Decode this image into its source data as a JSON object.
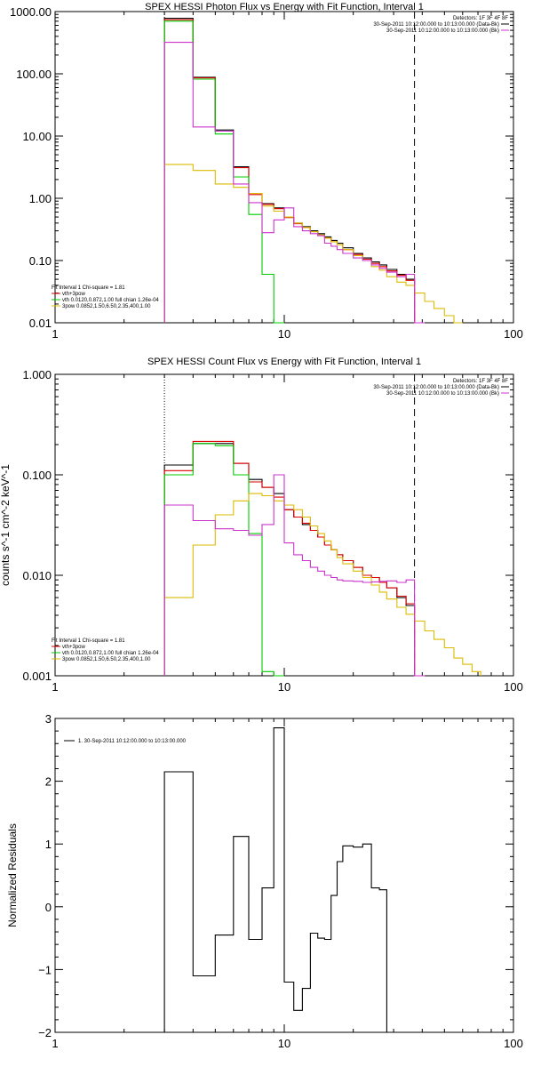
{
  "chart_data": [
    {
      "type": "line",
      "title": "SPEX HESSI Photon Flux vs Energy with Fit Function, Interval 1",
      "xscale": "log",
      "yscale": "log",
      "xlim": [
        1,
        100
      ],
      "ylim": [
        0.01,
        1000
      ],
      "xticks": [
        {
          "v": 1,
          "label": "1"
        },
        {
          "v": 10,
          "label": "10"
        },
        {
          "v": 100,
          "label": "100"
        }
      ],
      "yticks": [
        {
          "v": 1000,
          "label": "1000.00"
        },
        {
          "v": 100,
          "label": "100.00"
        },
        {
          "v": 10,
          "label": "10.00"
        },
        {
          "v": 1,
          "label": "1.00"
        },
        {
          "v": 0.1,
          "label": "0.10"
        },
        {
          "v": 0.01,
          "label": "0.01"
        }
      ],
      "edges": [
        3,
        4,
        5,
        6,
        7,
        8,
        9,
        10,
        11,
        12,
        13,
        14,
        15,
        16,
        17,
        18,
        20,
        22,
        24,
        26,
        28,
        31,
        34,
        37,
        41,
        45,
        50,
        55,
        60
      ],
      "vlines": [
        {
          "x": 3,
          "style": "dotted",
          "color": "#000000"
        },
        {
          "x": 37,
          "style": "dashed",
          "color": "#000000"
        }
      ],
      "top_right_legend": [
        {
          "text": "Detectors: 1F 3F 4F 8F",
          "swatch": null
        },
        {
          "text": "30-Sep-2011 10:12:00.000 to 10:13:00.000 (Data-Bk)",
          "swatch": "#000000"
        },
        {
          "text": "30-Sep-2011 10:12:00.000 to 10:13:00.000 (Bk)",
          "swatch": "#cc33cc"
        }
      ],
      "bottom_left_legend": [
        {
          "text": "Fit Interval  1    Chi-square = 1.81",
          "swatch": null
        },
        {
          "text": "vth+3pow",
          "swatch": "#dd0000"
        },
        {
          "text": "vth 0.0120,0.872,1.00  full chian 1.26e-04",
          "swatch": "#00cc00"
        },
        {
          "text": "3pow 0.0852,1.50,6.50,2.35,400,1.00",
          "swatch": "#ddbb00"
        }
      ],
      "series": [
        {
          "color": "#000000",
          "values": [
            780,
            88,
            12.5,
            3.2,
            1.2,
            0.82,
            0.7,
            0.5,
            0.4,
            0.35,
            0.3,
            0.27,
            0.24,
            0.21,
            0.19,
            0.16,
            0.13,
            0.11,
            0.095,
            0.085,
            0.072,
            0.06,
            0.05,
            0.01
          ]
        },
        {
          "color": "#dd0000",
          "values": [
            740,
            86,
            12.0,
            3.1,
            1.15,
            0.8,
            0.68,
            0.49,
            0.39,
            0.34,
            0.29,
            0.26,
            0.23,
            0.2,
            0.18,
            0.15,
            0.125,
            0.105,
            0.09,
            0.08,
            0.068,
            0.058,
            0.048,
            0.01
          ]
        },
        {
          "color": "#00cc00",
          "values": [
            700,
            82,
            10.8,
            2.2,
            0.55,
            0.06,
            0.01
          ]
        },
        {
          "color": "#ddbb00",
          "values": [
            3.5,
            2.8,
            1.7,
            1.5,
            1.2,
            0.75,
            0.62,
            0.5,
            0.4,
            0.34,
            0.29,
            0.26,
            0.23,
            0.2,
            0.18,
            0.15,
            0.12,
            0.1,
            0.08,
            0.07,
            0.055,
            0.045,
            0.04,
            0.03,
            0.022,
            0.017,
            0.013,
            0.01
          ]
        },
        {
          "color": "#cc33cc",
          "values": [
            320,
            14,
            12,
            1.7,
            0.85,
            0.28,
            0.45,
            0.7,
            0.35,
            0.3,
            0.27,
            0.25,
            0.19,
            0.17,
            0.15,
            0.13,
            0.11,
            0.1,
            0.085,
            0.075,
            0.065,
            0.055,
            0.06,
            0.01
          ]
        }
      ]
    },
    {
      "type": "line",
      "title": "SPEX HESSI Count Flux vs Energy with Fit Function, Interval 1",
      "ylabel": "counts s^-1 cm^-2 keV^-1",
      "xscale": "log",
      "yscale": "log",
      "xlim": [
        1,
        100
      ],
      "ylim": [
        0.001,
        1
      ],
      "xticks": [
        {
          "v": 1,
          "label": "1"
        },
        {
          "v": 10,
          "label": "10"
        },
        {
          "v": 100,
          "label": "100"
        }
      ],
      "yticks": [
        {
          "v": 1,
          "label": "1.000"
        },
        {
          "v": 0.1,
          "label": "0.100"
        },
        {
          "v": 0.01,
          "label": "0.010"
        },
        {
          "v": 0.001,
          "label": "0.001"
        }
      ],
      "edges": [
        3,
        4,
        5,
        6,
        7,
        8,
        9,
        10,
        11,
        12,
        13,
        14,
        15,
        16,
        17,
        18,
        20,
        22,
        24,
        26,
        28,
        31,
        34,
        37,
        41,
        45,
        50,
        55,
        60,
        66,
        72
      ],
      "vlines": [
        {
          "x": 3,
          "style": "dotted",
          "color": "#000000"
        },
        {
          "x": 37,
          "style": "dashed",
          "color": "#000000"
        }
      ],
      "top_right_legend": [
        {
          "text": "Detectors: 1F 3F 4F 8F",
          "swatch": null
        },
        {
          "text": "30-Sep-2011 10:12:00.000 to 10:13:00.000 (Data-Bk)",
          "swatch": "#000000"
        },
        {
          "text": "30-Sep-2011 10:12:00.000 to 10:13:00.000 (Bk)",
          "swatch": "#cc33cc"
        }
      ],
      "bottom_left_legend": [
        {
          "text": "Fit Interval  1    Chi-square = 1.81",
          "swatch": null
        },
        {
          "text": "vth+3pow",
          "swatch": "#dd0000"
        },
        {
          "text": "vth 0.0120,0.872,1.00  full chian 1.26e-04",
          "swatch": "#00cc00"
        },
        {
          "text": "3pow 0.0852,1.50,6.50,2.35,400,1.00",
          "swatch": "#ddbb00"
        }
      ],
      "series": [
        {
          "color": "#000000",
          "values": [
            0.125,
            0.205,
            0.205,
            0.13,
            0.09,
            0.075,
            0.065,
            0.045,
            0.038,
            0.032,
            0.028,
            0.024,
            0.02,
            0.018,
            0.016,
            0.014,
            0.012,
            0.01,
            0.0095,
            0.0085,
            0.0075,
            0.006,
            0.005,
            0.001
          ]
        },
        {
          "color": "#dd0000",
          "values": [
            0.11,
            0.215,
            0.215,
            0.13,
            0.085,
            0.075,
            0.06,
            0.045,
            0.038,
            0.033,
            0.028,
            0.024,
            0.02,
            0.018,
            0.016,
            0.014,
            0.012,
            0.01,
            0.0095,
            0.0085,
            0.0075,
            0.0062,
            0.0052,
            0.001
          ]
        },
        {
          "color": "#00cc00",
          "values": [
            0.1,
            0.205,
            0.195,
            0.1,
            0.026,
            0.0011,
            0.001
          ]
        },
        {
          "color": "#ddbb00",
          "values": [
            0.006,
            0.02,
            0.04,
            0.055,
            0.065,
            0.062,
            0.055,
            0.05,
            0.045,
            0.038,
            0.031,
            0.026,
            0.022,
            0.018,
            0.015,
            0.013,
            0.011,
            0.0095,
            0.008,
            0.0068,
            0.0058,
            0.0048,
            0.0041,
            0.0035,
            0.0028,
            0.0023,
            0.0019,
            0.0015,
            0.0013,
            0.0011
          ]
        },
        {
          "color": "#cc33cc",
          "values": [
            0.05,
            0.035,
            0.029,
            0.028,
            0.025,
            0.032,
            0.1,
            0.021,
            0.016,
            0.014,
            0.012,
            0.011,
            0.01,
            0.0095,
            0.009,
            0.0088,
            0.0087,
            0.0085,
            0.0086,
            0.0087,
            0.0088,
            0.0085,
            0.009,
            0.001
          ]
        }
      ]
    },
    {
      "type": "line",
      "ylabel": "Normalized Residuals",
      "xscale": "log",
      "yscale": "linear",
      "xlim": [
        1,
        100
      ],
      "ylim": [
        -2,
        3
      ],
      "xticks": [
        {
          "v": 1,
          "label": "1"
        },
        {
          "v": 10,
          "label": "10"
        },
        {
          "v": 100,
          "label": "100"
        }
      ],
      "yticks": [
        {
          "v": 3,
          "label": "3"
        },
        {
          "v": 2,
          "label": "2"
        },
        {
          "v": 1,
          "label": "1"
        },
        {
          "v": 0,
          "label": "0"
        },
        {
          "v": -1,
          "label": "−1"
        },
        {
          "v": -2,
          "label": "−2"
        }
      ],
      "edges": [
        3,
        4,
        5,
        6,
        7,
        8,
        9,
        10,
        11,
        12,
        13,
        14,
        15,
        16,
        17,
        18,
        20,
        22,
        24,
        26,
        28,
        31,
        34,
        37
      ],
      "vlines": [],
      "top_left_legend": [
        {
          "text": "1. 30-Sep-2011 10:12:00.000 to 10:13:00.000",
          "swatch": "#000000"
        }
      ],
      "series": [
        {
          "color": "#000000",
          "values": [
            2.15,
            -1.1,
            -0.45,
            1.12,
            -0.52,
            0.3,
            2.85,
            -1.2,
            -1.65,
            -1.3,
            -0.42,
            -0.5,
            -0.52,
            0.18,
            0.72,
            0.97,
            0.95,
            1.0,
            0.3,
            0.27
          ]
        }
      ]
    }
  ]
}
